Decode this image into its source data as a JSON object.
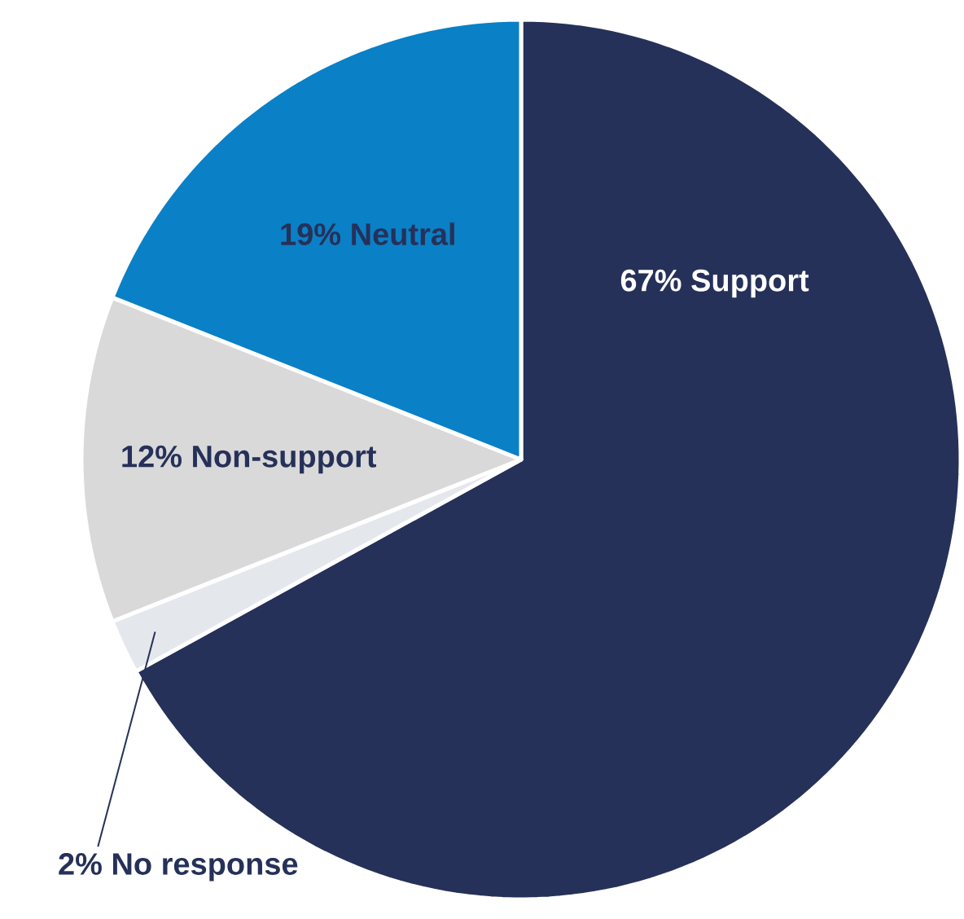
{
  "chart_data": {
    "type": "pie",
    "categories": [
      "Support",
      "No response",
      "Non-support",
      "Neutral"
    ],
    "values": [
      67,
      2,
      12,
      19
    ],
    "value_labels": [
      "67%",
      "2%",
      "12%",
      "19%"
    ],
    "colors": [
      "#263159",
      "#e4e7ec",
      "#d9d9d9",
      "#0a80c6"
    ]
  }
}
